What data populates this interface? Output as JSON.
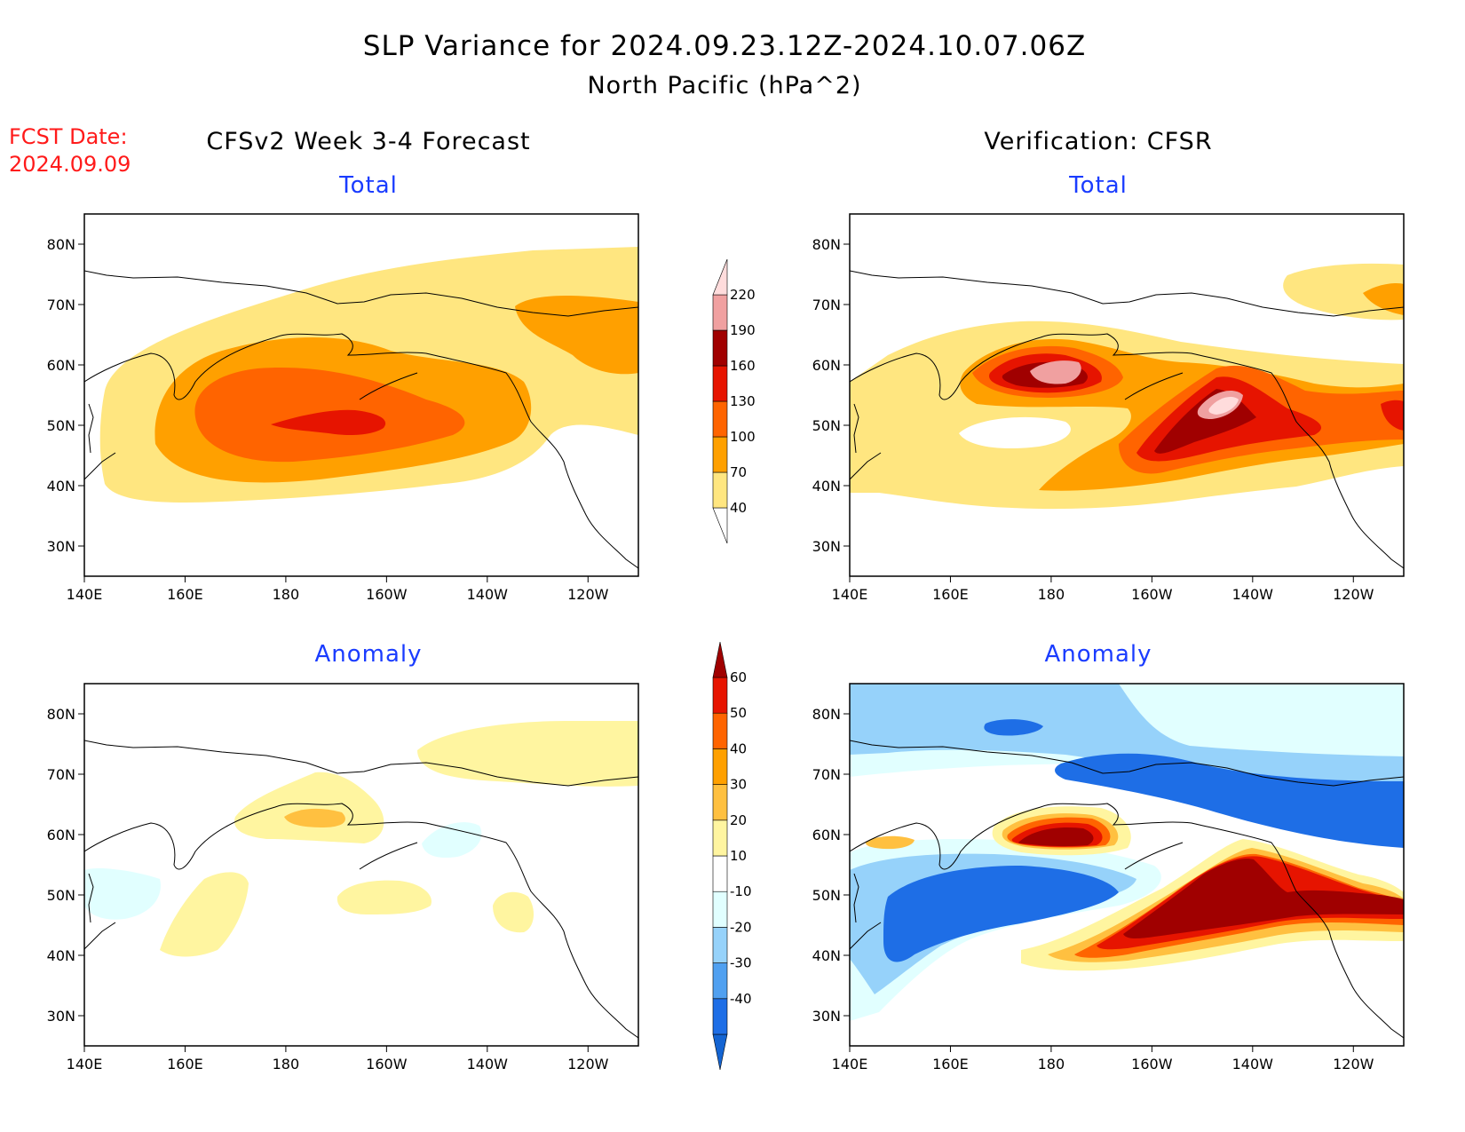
{
  "title": {
    "line1": "SLP Variance for 2024.09.23.12Z-2024.10.07.06Z",
    "line2": "North Pacific (hPa^2)"
  },
  "forecast_date": {
    "label": "FCST Date:",
    "value": "2024.09.09"
  },
  "columns": {
    "left": "CFSv2 Week 3-4 Forecast",
    "right": "Verification: CFSR"
  },
  "panels": {
    "top_left_title": "Total",
    "top_right_title": "Total",
    "bottom_left_title": "Anomaly",
    "bottom_right_title": "Anomaly"
  },
  "axes": {
    "lat_ticks": [
      "80N",
      "70N",
      "60N",
      "50N",
      "40N",
      "30N"
    ],
    "lon_ticks": [
      "140E",
      "160E",
      "180",
      "160W",
      "140W",
      "120W"
    ],
    "lon_range": [
      140,
      250
    ],
    "lat_range": [
      25,
      85
    ]
  },
  "colorbars": {
    "total": {
      "levels": [
        "40",
        "70",
        "100",
        "130",
        "160",
        "190",
        "220"
      ],
      "colors": [
        "#ffe680",
        "#ffa000",
        "#ff6400",
        "#e61400",
        "#a00000",
        "#f0a0a0",
        "#ffdcdc"
      ]
    },
    "anomaly": {
      "levels": [
        "-40",
        "-30",
        "-20",
        "-10",
        "10",
        "20",
        "30",
        "40",
        "50",
        "60"
      ],
      "colors": [
        "#1464d2",
        "#1e6ee6",
        "#50a0f0",
        "#96d2fa",
        "#e1ffff",
        "#ffffff",
        "#fff5a0",
        "#ffc040",
        "#ffa000",
        "#ff6400",
        "#e61400",
        "#a00000"
      ]
    }
  },
  "colors": {
    "title_red": "#ff1a1a",
    "title_blue": "#1a3cff"
  }
}
